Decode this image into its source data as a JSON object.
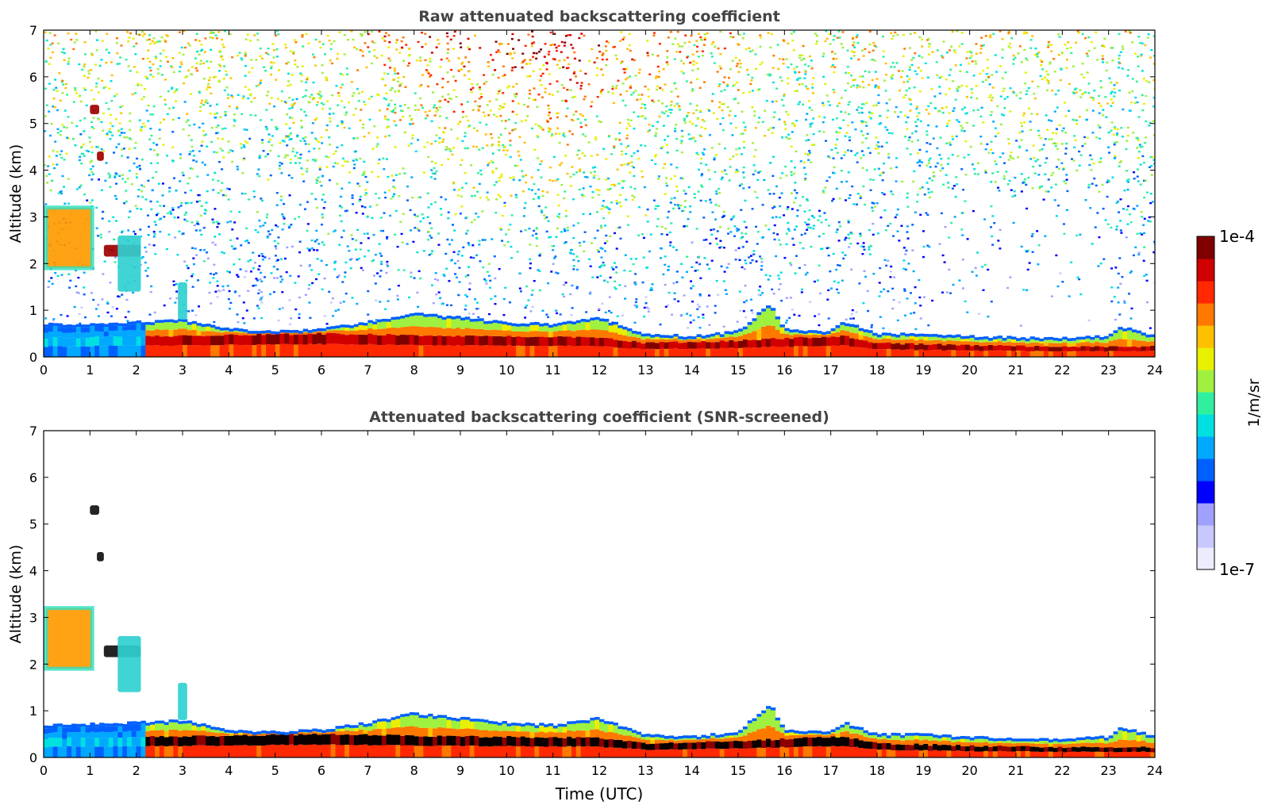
{
  "chart_data": [
    {
      "type": "heatmap",
      "title": "Raw attenuated backscattering coefficient",
      "xlabel": "",
      "ylabel": "Altitude (km)",
      "xlim": [
        0,
        24
      ],
      "ylim": [
        0,
        7
      ],
      "x_ticks": [
        "0",
        "1",
        "2",
        "3",
        "4",
        "5",
        "6",
        "7",
        "8",
        "9",
        "10",
        "11",
        "12",
        "13",
        "14",
        "15",
        "16",
        "17",
        "18",
        "19",
        "20",
        "21",
        "22",
        "23",
        "24"
      ],
      "y_ticks": [
        "0",
        "1",
        "2",
        "3",
        "4",
        "5",
        "6",
        "7"
      ],
      "value_scale": "log",
      "value_range": [
        1e-07,
        0.0001
      ],
      "screened": false,
      "boundary_layer": [
        {
          "t": 0,
          "top": 0.7
        },
        {
          "t": 1,
          "top": 0.72
        },
        {
          "t": 2,
          "top": 0.75
        },
        {
          "t": 3,
          "top": 0.8
        },
        {
          "t": 4,
          "top": 0.6
        },
        {
          "t": 5,
          "top": 0.55
        },
        {
          "t": 6,
          "top": 0.6
        },
        {
          "t": 7,
          "top": 0.75
        },
        {
          "t": 8,
          "top": 0.95
        },
        {
          "t": 9,
          "top": 0.85
        },
        {
          "t": 10,
          "top": 0.75
        },
        {
          "t": 11,
          "top": 0.7
        },
        {
          "t": 12,
          "top": 0.85
        },
        {
          "t": 13,
          "top": 0.5
        },
        {
          "t": 14,
          "top": 0.45
        },
        {
          "t": 15,
          "top": 0.55
        },
        {
          "t": 15.7,
          "top": 1.15
        },
        {
          "t": 16,
          "top": 0.6
        },
        {
          "t": 17,
          "top": 0.55
        },
        {
          "t": 17.3,
          "top": 0.75
        },
        {
          "t": 18,
          "top": 0.5
        },
        {
          "t": 19,
          "top": 0.5
        },
        {
          "t": 20,
          "top": 0.45
        },
        {
          "t": 21,
          "top": 0.42
        },
        {
          "t": 22,
          "top": 0.4
        },
        {
          "t": 23,
          "top": 0.45
        },
        {
          "t": 23.3,
          "top": 0.65
        },
        {
          "t": 24,
          "top": 0.45
        }
      ],
      "aerosol_layer_top_km": [
        {
          "t": 0,
          "h": 0.4
        },
        {
          "t": 2,
          "h": 0.45
        },
        {
          "t": 3,
          "h": 0.45
        },
        {
          "t": 6,
          "h": 0.5
        },
        {
          "t": 9,
          "h": 0.45
        },
        {
          "t": 12,
          "h": 0.42
        },
        {
          "t": 13,
          "h": 0.3
        },
        {
          "t": 15,
          "h": 0.35
        },
        {
          "t": 16,
          "h": 0.4
        },
        {
          "t": 17.3,
          "h": 0.45
        },
        {
          "t": 18,
          "h": 0.3
        },
        {
          "t": 20,
          "h": 0.25
        },
        {
          "t": 22,
          "h": 0.22
        },
        {
          "t": 24,
          "h": 0.22
        }
      ],
      "elevated_features": [
        {
          "t0": 0.05,
          "t1": 1.05,
          "z0": 1.9,
          "z1": 3.2,
          "level": "high"
        },
        {
          "t0": 1.3,
          "t1": 2.1,
          "z0": 2.15,
          "z1": 2.4,
          "level": "peak"
        },
        {
          "t0": 1.6,
          "t1": 2.1,
          "z0": 1.4,
          "z1": 2.6,
          "level": "mid"
        },
        {
          "t0": 1.0,
          "t1": 1.2,
          "z0": 5.2,
          "z1": 5.4,
          "level": "peak"
        },
        {
          "t0": 1.15,
          "t1": 1.3,
          "z0": 4.2,
          "z1": 4.4,
          "level": "peak"
        },
        {
          "t0": 2.9,
          "t1": 3.1,
          "z0": 0.8,
          "z1": 1.6,
          "level": "mid"
        }
      ]
    },
    {
      "type": "heatmap",
      "title": "Attenuated backscattering coefficient (SNR-screened)",
      "xlabel": "Time (UTC)",
      "ylabel": "Altitude (km)",
      "xlim": [
        0,
        24
      ],
      "ylim": [
        0,
        7
      ],
      "x_ticks": [
        "0",
        "1",
        "2",
        "3",
        "4",
        "5",
        "6",
        "7",
        "8",
        "9",
        "10",
        "11",
        "12",
        "13",
        "14",
        "15",
        "16",
        "17",
        "18",
        "19",
        "20",
        "21",
        "22",
        "23",
        "24"
      ],
      "y_ticks": [
        "0",
        "1",
        "2",
        "3",
        "4",
        "5",
        "6",
        "7"
      ],
      "value_scale": "log",
      "value_range": [
        1e-07,
        0.0001
      ],
      "screened": true
    }
  ],
  "colorbar": {
    "label": "1/m/sr",
    "max_label": "1e-4",
    "min_label": "1e-7",
    "colors": [
      "#ececff",
      "#c8c8ff",
      "#a0a0ff",
      "#0000ff",
      "#0060ff",
      "#00a8ff",
      "#00e0e0",
      "#30f0a0",
      "#a0f040",
      "#e8f000",
      "#ffc000",
      "#ff7800",
      "#ff2800",
      "#d00000",
      "#800000"
    ]
  }
}
